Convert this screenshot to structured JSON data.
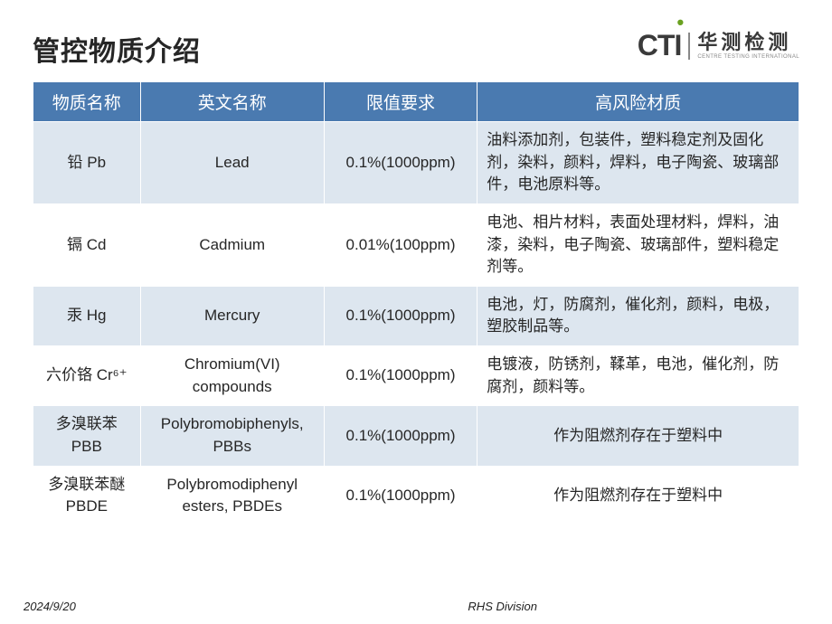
{
  "title": "管控物质介绍",
  "logo": {
    "cti_c": "C",
    "cti_t": "T",
    "cti_i_dot": "•",
    "cti_i": "I",
    "cn_main": "华测检测",
    "cn_sub": "CENTRE TESTING INTERNATIONAL"
  },
  "table": {
    "headers": {
      "name": "物质名称",
      "en": "英文名称",
      "limit": "限值要求",
      "risk": "高风险材质"
    },
    "col_widths": [
      "14%",
      "24%",
      "20%",
      "42%"
    ],
    "header_bg": "#4a7ab0",
    "header_fg": "#ffffff",
    "alt_bg": "#dde6ef",
    "plain_bg": "#ffffff",
    "rows": [
      {
        "name_html": "铅  Pb",
        "en": "Lead",
        "limit": "0.1%(1000ppm)",
        "risk": "油料添加剂，包装件，塑料稳定剂及固化剂，染料，颜料，焊料，电子陶瓷、玻璃部件，电池原料等。",
        "alt": true
      },
      {
        "name_html": "镉  Cd",
        "en": "Cadmium",
        "limit": "0.01%(100ppm)",
        "risk": "电池、相片材料，表面处理材料，焊料，油漆，染料，电子陶瓷、玻璃部件，塑料稳定剂等。",
        "alt": false
      },
      {
        "name_html": "汞  Hg",
        "en": "Mercury",
        "limit": "0.1%(1000ppm)",
        "risk": "电池，灯，防腐剂，催化剂，颜料，电极，塑胶制品等。",
        "alt": true
      },
      {
        "name_html": "六价铬 Cr⁶⁺",
        "en": "Chromium(VI) compounds",
        "limit": "0.1%(1000ppm)",
        "risk": "电镀液，防锈剂，鞣革，电池，催化剂，防腐剂，颜料等。",
        "alt": false
      },
      {
        "name_html": "多溴联苯 PBB",
        "en": "Polybromobiphenyls, PBBs",
        "limit": "0.1%(1000ppm)",
        "risk": "作为阻燃剂存在于塑料中",
        "risk_align": "center",
        "alt": true
      },
      {
        "name_html": "多溴联苯醚 PBDE",
        "en": "Polybromodiphenyl esters, PBDEs",
        "limit": "0.1%(1000ppm)",
        "risk": "作为阻燃剂存在于塑料中",
        "risk_align": "center",
        "alt": false
      }
    ]
  },
  "footer": {
    "date": "2024/9/20",
    "division": "RHS Division"
  }
}
